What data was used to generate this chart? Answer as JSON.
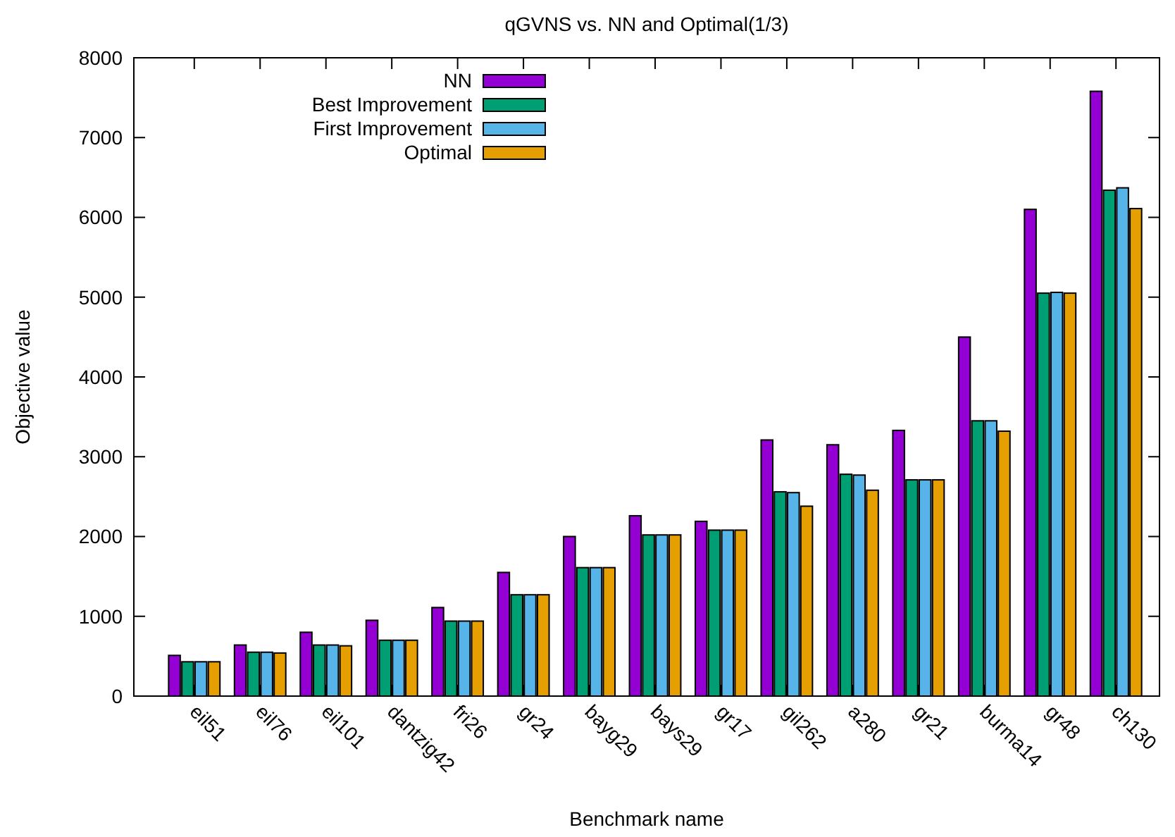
{
  "chart_data": {
    "type": "bar",
    "title": "qGVNS vs. NN and Optimal(1/3)",
    "xlabel": "Benchmark name",
    "ylabel": "Objective value",
    "categories": [
      "eil51",
      "eil76",
      "eil101",
      "dantzig42",
      "fri26",
      "gr24",
      "bayg29",
      "bays29",
      "gr17",
      "gil262",
      "a280",
      "gr21",
      "burma14",
      "gr48",
      "ch130"
    ],
    "series": [
      {
        "name": "NN",
        "color": "#9400d3",
        "values": [
          510,
          640,
          800,
          950,
          1110,
          1550,
          2000,
          2260,
          2190,
          3210,
          3150,
          3330,
          4500,
          6100,
          7580
        ]
      },
      {
        "name": "Best Improvement",
        "color": "#009e73",
        "values": [
          430,
          550,
          640,
          700,
          940,
          1270,
          1610,
          2020,
          2080,
          2560,
          2780,
          2710,
          3450,
          5050,
          6340
        ]
      },
      {
        "name": "First Improvement",
        "color": "#56b4e9",
        "values": [
          430,
          550,
          640,
          700,
          940,
          1270,
          1610,
          2020,
          2080,
          2550,
          2770,
          2710,
          3450,
          5060,
          6370
        ]
      },
      {
        "name": "Optimal",
        "color": "#e69f00",
        "values": [
          430,
          540,
          630,
          700,
          940,
          1270,
          1610,
          2020,
          2080,
          2380,
          2580,
          2710,
          3320,
          5050,
          6110
        ]
      }
    ],
    "ylim": [
      0,
      8000
    ],
    "yticks": [
      0,
      1000,
      2000,
      3000,
      4000,
      5000,
      6000,
      7000,
      8000
    ],
    "legend": "top left",
    "grid": false
  }
}
